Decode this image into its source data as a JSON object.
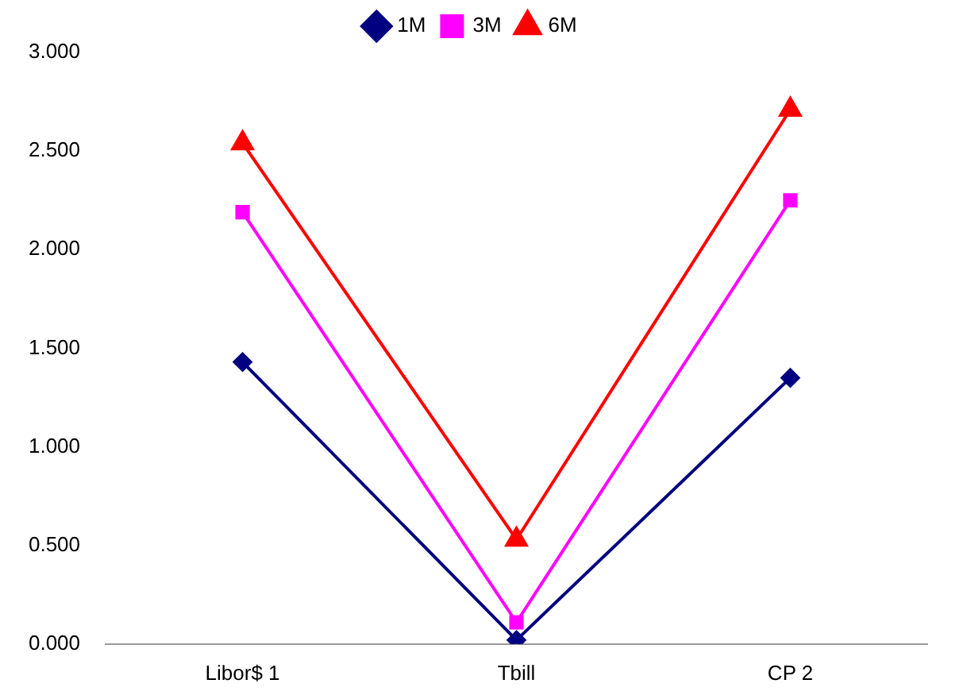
{
  "chart_data": {
    "type": "line",
    "categories": [
      "Libor$ 1",
      "Tbill",
      "CP 2"
    ],
    "series": [
      {
        "name": "1M",
        "color": "#000080",
        "values": [
          1.43,
          0.02,
          1.35
        ],
        "marker": "diamond"
      },
      {
        "name": "3M",
        "color": "#ff00ff",
        "values": [
          2.19,
          0.11,
          2.25
        ],
        "marker": "square"
      },
      {
        "name": "6M",
        "color": "#ff0000",
        "values": [
          2.54,
          0.53,
          2.71
        ],
        "marker": "triangle"
      }
    ],
    "ylim": [
      0,
      3
    ],
    "yticks": [
      {
        "value": 0,
        "label": "0.000"
      },
      {
        "value": 0.5,
        "label": "0.500"
      },
      {
        "value": 1,
        "label": "1.000"
      },
      {
        "value": 1.5,
        "label": "1.500"
      },
      {
        "value": 2,
        "label": "2.000"
      },
      {
        "value": 2.5,
        "label": "2.500"
      },
      {
        "value": 3,
        "label": "3.000"
      }
    ],
    "grid": false,
    "legend": "top"
  }
}
